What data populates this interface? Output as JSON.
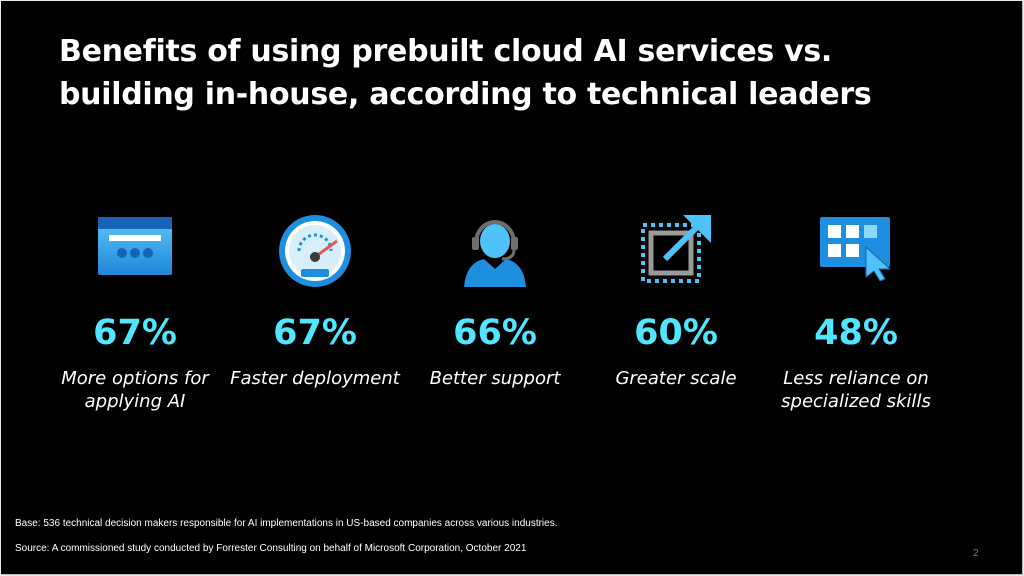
{
  "title": "Benefits of using prebuilt cloud AI services vs. building in-house, according to technical leaders",
  "stats": [
    {
      "icon": "browser-window-icon",
      "value": "67%",
      "label_line1": "More options for",
      "label_line2": "applying AI"
    },
    {
      "icon": "speedometer-icon",
      "value": "67%",
      "label_line1": "Faster deployment",
      "label_line2": ""
    },
    {
      "icon": "support-headset-person-icon",
      "value": "66%",
      "label_line1": "Better support",
      "label_line2": ""
    },
    {
      "icon": "expand-arrow-icon",
      "value": "60%",
      "label_line1": "Greater scale",
      "label_line2": ""
    },
    {
      "icon": "app-grid-cursor-icon",
      "value": "48%",
      "label_line1": "Less reliance on",
      "label_line2": "specialized skills"
    }
  ],
  "base_note": "Base: 536 technical decision makers responsible for AI implementations in US-based companies across various industries.",
  "source_note": "Source: A commissioned study conducted by Forrester Consulting on behalf of Microsoft Corporation, October 2021",
  "page_number": "2",
  "colors": {
    "background": "#000000",
    "accent": "#50e6ff",
    "text": "#ffffff",
    "icon_blue": "#1e8fe0"
  }
}
